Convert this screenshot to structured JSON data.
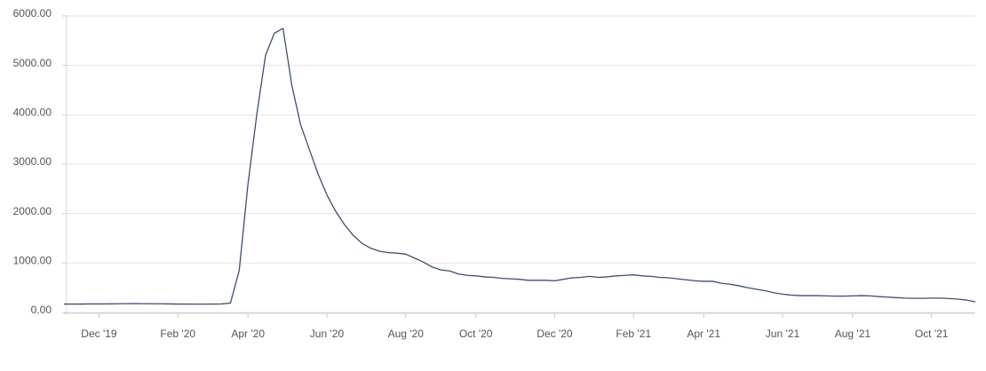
{
  "chart_data": {
    "type": "line",
    "categories": [
      null,
      null,
      null,
      null,
      "Dec '19",
      null,
      null,
      null,
      null,
      null,
      null,
      null,
      null,
      "Feb '20",
      null,
      null,
      null,
      null,
      null,
      null,
      null,
      "Apr '20",
      null,
      null,
      null,
      null,
      null,
      null,
      null,
      null,
      "Jun '20",
      null,
      null,
      null,
      null,
      null,
      null,
      null,
      null,
      "Aug '20",
      null,
      null,
      null,
      null,
      null,
      null,
      null,
      "Oct '20",
      null,
      null,
      null,
      null,
      null,
      null,
      null,
      null,
      "Dec '20",
      null,
      null,
      null,
      null,
      null,
      null,
      null,
      null,
      "Feb '21",
      null,
      null,
      null,
      null,
      null,
      null,
      null,
      "Apr '21",
      null,
      null,
      null,
      null,
      null,
      null,
      null,
      null,
      "Jun '21",
      null,
      null,
      null,
      null,
      null,
      null,
      null,
      "Aug '21",
      null,
      null,
      null,
      null,
      null,
      null,
      null,
      null,
      "Oct '21",
      null,
      null,
      null,
      null,
      null
    ],
    "values": [
      170,
      170,
      170,
      172,
      172,
      172,
      175,
      178,
      180,
      178,
      175,
      175,
      172,
      170,
      170,
      168,
      168,
      170,
      172,
      190,
      850,
      2600,
      4000,
      5200,
      5650,
      5750,
      4600,
      3800,
      3300,
      2800,
      2380,
      2050,
      1780,
      1560,
      1400,
      1300,
      1240,
      1210,
      1200,
      1180,
      1100,
      1020,
      920,
      860,
      840,
      780,
      750,
      740,
      720,
      710,
      690,
      680,
      670,
      650,
      650,
      650,
      640,
      670,
      700,
      710,
      730,
      710,
      720,
      740,
      750,
      760,
      740,
      730,
      710,
      700,
      680,
      660,
      640,
      630,
      630,
      590,
      570,
      540,
      500,
      470,
      440,
      400,
      370,
      350,
      340,
      340,
      340,
      335,
      330,
      330,
      335,
      340,
      335,
      320,
      310,
      300,
      290,
      285,
      285,
      290,
      290,
      280,
      270,
      250,
      215
    ],
    "color": "#3d4f6e",
    "ylim": [
      0,
      6000
    ],
    "yticks": [
      {
        "value": 0,
        "label": "0.00"
      },
      {
        "value": 1000,
        "label": "1000.00"
      },
      {
        "value": 2000,
        "label": "2000.00"
      },
      {
        "value": 3000,
        "label": "3000.00"
      },
      {
        "value": 4000,
        "label": "4000.00"
      },
      {
        "value": 5000,
        "label": "5000.00"
      },
      {
        "value": 6000,
        "label": "6000.00"
      }
    ],
    "grid": true
  }
}
